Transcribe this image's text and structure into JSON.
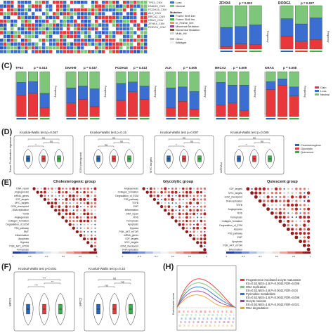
{
  "colors": {
    "gain": "#e8383c",
    "loss": "#3a6fd1",
    "neutral": "#7dc67a",
    "frame_shift_del": "#2b58c4",
    "frame_shift_ins": "#3fb54a",
    "in_frame_del": "#e8a23a",
    "missense": "#a33c9b",
    "nonsense": "#8b4a2c",
    "multi_hit": "#d6d6d6",
    "other": "#bdbdbd",
    "chole": "#2966b8",
    "glyco": "#e03a3a",
    "quies": "#38b04a"
  },
  "panel_labels": {
    "c": "(C)",
    "d": "(D)",
    "e": "(E)",
    "f": "(F)",
    "h": "(H)"
  },
  "oncoprint": {
    "row_labels": [
      "TP53_CNV",
      "DNAH9_CNV",
      "PCDH15_CNV",
      "ALK_CNV",
      "BRCA2_CNV",
      "KRAS_CNV",
      "ZFHX4_CNV",
      "RODG1_CNV"
    ],
    "legend_cnv": [
      "Loss",
      "Neutral"
    ],
    "legend_mut_title": "Mutation",
    "legend_mut": [
      "Frame Shift Del",
      "Frame Shift Ins",
      "In_Frame_Del",
      "Missense Mutation",
      "Nonsense Mutation",
      "Multi_Hit"
    ],
    "legend_other": [
      "Other",
      "Wildtype"
    ]
  },
  "top_bars": [
    {
      "gene": "ZFHX4",
      "p": "p = 0.022",
      "gain": [
        0.06,
        0.12,
        0.1
      ],
      "loss": [
        0.44,
        0.4,
        0.46
      ]
    },
    {
      "gene": "RODG1",
      "p": "p = 0.027",
      "gain": [
        0.3,
        0.18,
        0.22
      ],
      "loss": [
        0.4,
        0.4,
        0.5
      ]
    }
  ],
  "c_bars": [
    {
      "gene": "TP53",
      "p": "p = 0.013",
      "gain": [
        0.48,
        0.52,
        0.2
      ],
      "loss": [
        0.28,
        0.26,
        0.32
      ]
    },
    {
      "gene": "DNAH9",
      "p": "p = 0.037",
      "gain": [
        0.3,
        0.38,
        0.22
      ],
      "loss": [
        0.34,
        0.3,
        0.4
      ]
    },
    {
      "gene": "PCDH15",
      "p": "p = 0.013",
      "gain": [
        0.36,
        0.55,
        0.38
      ],
      "loss": [
        0.38,
        0.22,
        0.3
      ]
    },
    {
      "gene": "ALK",
      "p": "p = 0.005",
      "gain": [
        0.2,
        0.34,
        0.16
      ],
      "loss": [
        0.44,
        0.32,
        0.4
      ]
    },
    {
      "gene": "BRCA2",
      "p": "p = 0.009",
      "gain": [
        0.26,
        0.3,
        0.14
      ],
      "loss": [
        0.5,
        0.4,
        0.56
      ]
    },
    {
      "gene": "KRAS",
      "p": "p = 0.008",
      "gain": [
        0.6,
        0.7,
        0.46
      ],
      "loss": [
        0.18,
        0.14,
        0.2
      ]
    }
  ],
  "c_legend": [
    "Gain",
    "Loss",
    "Neutral"
  ],
  "c_ylabel": "Frequency",
  "d_violins": [
    {
      "test": "Kruskal-Wallis test p=0.057",
      "ylabel": "Tumor Proliferation signature",
      "sig": [
        "*",
        "ns",
        "ns"
      ]
    },
    {
      "test": "Kruskal-Wallis test p=0.15",
      "ylabel": "G2M checkpoint",
      "sig": [
        "ns",
        "ns",
        "ns"
      ]
    },
    {
      "test": "Kruskal-Wallis test p=0.097",
      "ylabel": "MYC targets",
      "sig": [
        "*",
        "ns",
        "ns"
      ]
    },
    {
      "test": "Kruskal-Wallis test p=0.089",
      "ylabel": "mRNAsi",
      "sig": [
        "*",
        "ns",
        "ns"
      ]
    }
  ],
  "d_legend": [
    "Cholesterogenic",
    "Glycolytic",
    "Quiescent"
  ],
  "e_groups": [
    {
      "title": "Cholesterogenic group",
      "labels": [
        "DNA_repair",
        "Angiogenesis",
        "mRNA_genes",
        "E2F_targets",
        "MYC_targets",
        "G2M_checkpoint",
        "DNA replication",
        "TGFB",
        "Angiogenesis",
        "Collagen_formation",
        "Degradation_of_ECM",
        "P53_pathway",
        "EMT",
        "Inflammation",
        "Apoptosis",
        "Hypoxia",
        "PI3K_AKT_mTOR",
        "Ferroptosis"
      ]
    },
    {
      "title": "Glycolytic group",
      "labels": [
        "Angiogenesis",
        "Collagen_formation",
        "Degradation_of_ECM",
        "P53_pathway",
        "TGFB",
        "EMT",
        "Inflammation",
        "DNA_repair",
        "ROS",
        "Ferroptosis",
        "Apoptosis",
        "Hypoxia",
        "PI3K_AKT_mTOR",
        "mRNA_genes",
        "E2F_targets",
        "MYC_targets",
        "G2M_checkpoint",
        "DNA replication"
      ]
    },
    {
      "title": "Quiescent group",
      "labels": [
        "E2F_targets",
        "MYC_targets",
        "G2M_checkpoint",
        "DNA replication",
        "TGFB",
        "Angiogenesis",
        "ROS",
        "Ferroptosis",
        "Collagen_formation",
        "Degradation_of_ECM",
        "Hypoxia",
        "P53_pathway",
        "EMT",
        "Apoptosis",
        "PI3K_AKT_mTOR",
        "Inflammation"
      ]
    }
  ],
  "e_scale": [
    "-1",
    "-0.8",
    "-0.6",
    "-0.4",
    "-0.2",
    "0",
    "0.2",
    "0.4",
    "0.6",
    "0.8",
    "1"
  ],
  "f_violins": [
    {
      "test": "Kruskal-Wallis test p<0.001",
      "ylabel": "MPC1",
      "sig": [
        "***",
        "**",
        "***"
      ]
    },
    {
      "test": "Kruskal-Wallis test p=0.33",
      "ylabel": "MPC2",
      "sig": [
        "ns",
        "ns",
        "ns"
      ]
    }
  ],
  "h_gsea": {
    "ylabel": "Enrichment score",
    "entries": [
      {
        "name": "Progesterone-mediated oocyte maturation",
        "stats": "ES=0.52,NES=1.8,P=0.0042,FDR=0.006",
        "color": "#e8383c"
      },
      {
        "name": "DNA replication",
        "stats": "ES=0.52,NES=1.8,P=0.0042,FDR=0.04",
        "color": "#7dc67a"
      },
      {
        "name": "Pyrimidine metabolism",
        "stats": "ES=0.52,NES=1.8,P=0.0042,FDR=0.006",
        "color": "#3a6fd1"
      },
      {
        "name": "Oocyte meiosis",
        "stats": "ES=0.52,NES=1.8,P=0.0042,FDR=0.021",
        "color": "#a33c9b"
      },
      {
        "name": "RNA degradation",
        "stats": "",
        "color": "#e8a23a"
      }
    ]
  }
}
